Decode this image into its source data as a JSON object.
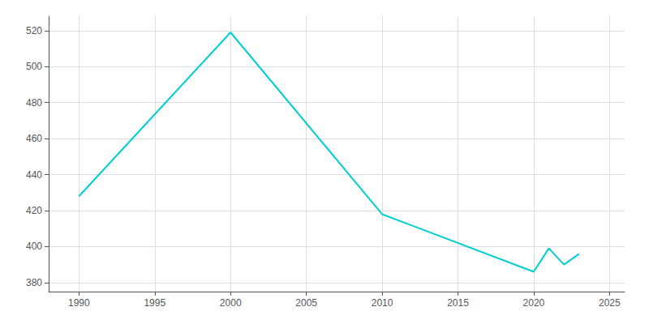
{
  "chart_data": {
    "type": "line",
    "x": [
      1990,
      2000,
      2010,
      2020,
      2021,
      2022,
      2023
    ],
    "values": [
      428,
      519,
      418,
      386,
      399,
      390,
      396
    ],
    "color": "#00CED1",
    "xlim": [
      1988,
      2026
    ],
    "xticks": [
      1990,
      1995,
      2000,
      2005,
      2010,
      2015,
      2020,
      2025
    ],
    "ylim": [
      375,
      528
    ],
    "yticks": [
      380,
      400,
      420,
      440,
      460,
      480,
      500,
      520
    ],
    "grid": true
  }
}
